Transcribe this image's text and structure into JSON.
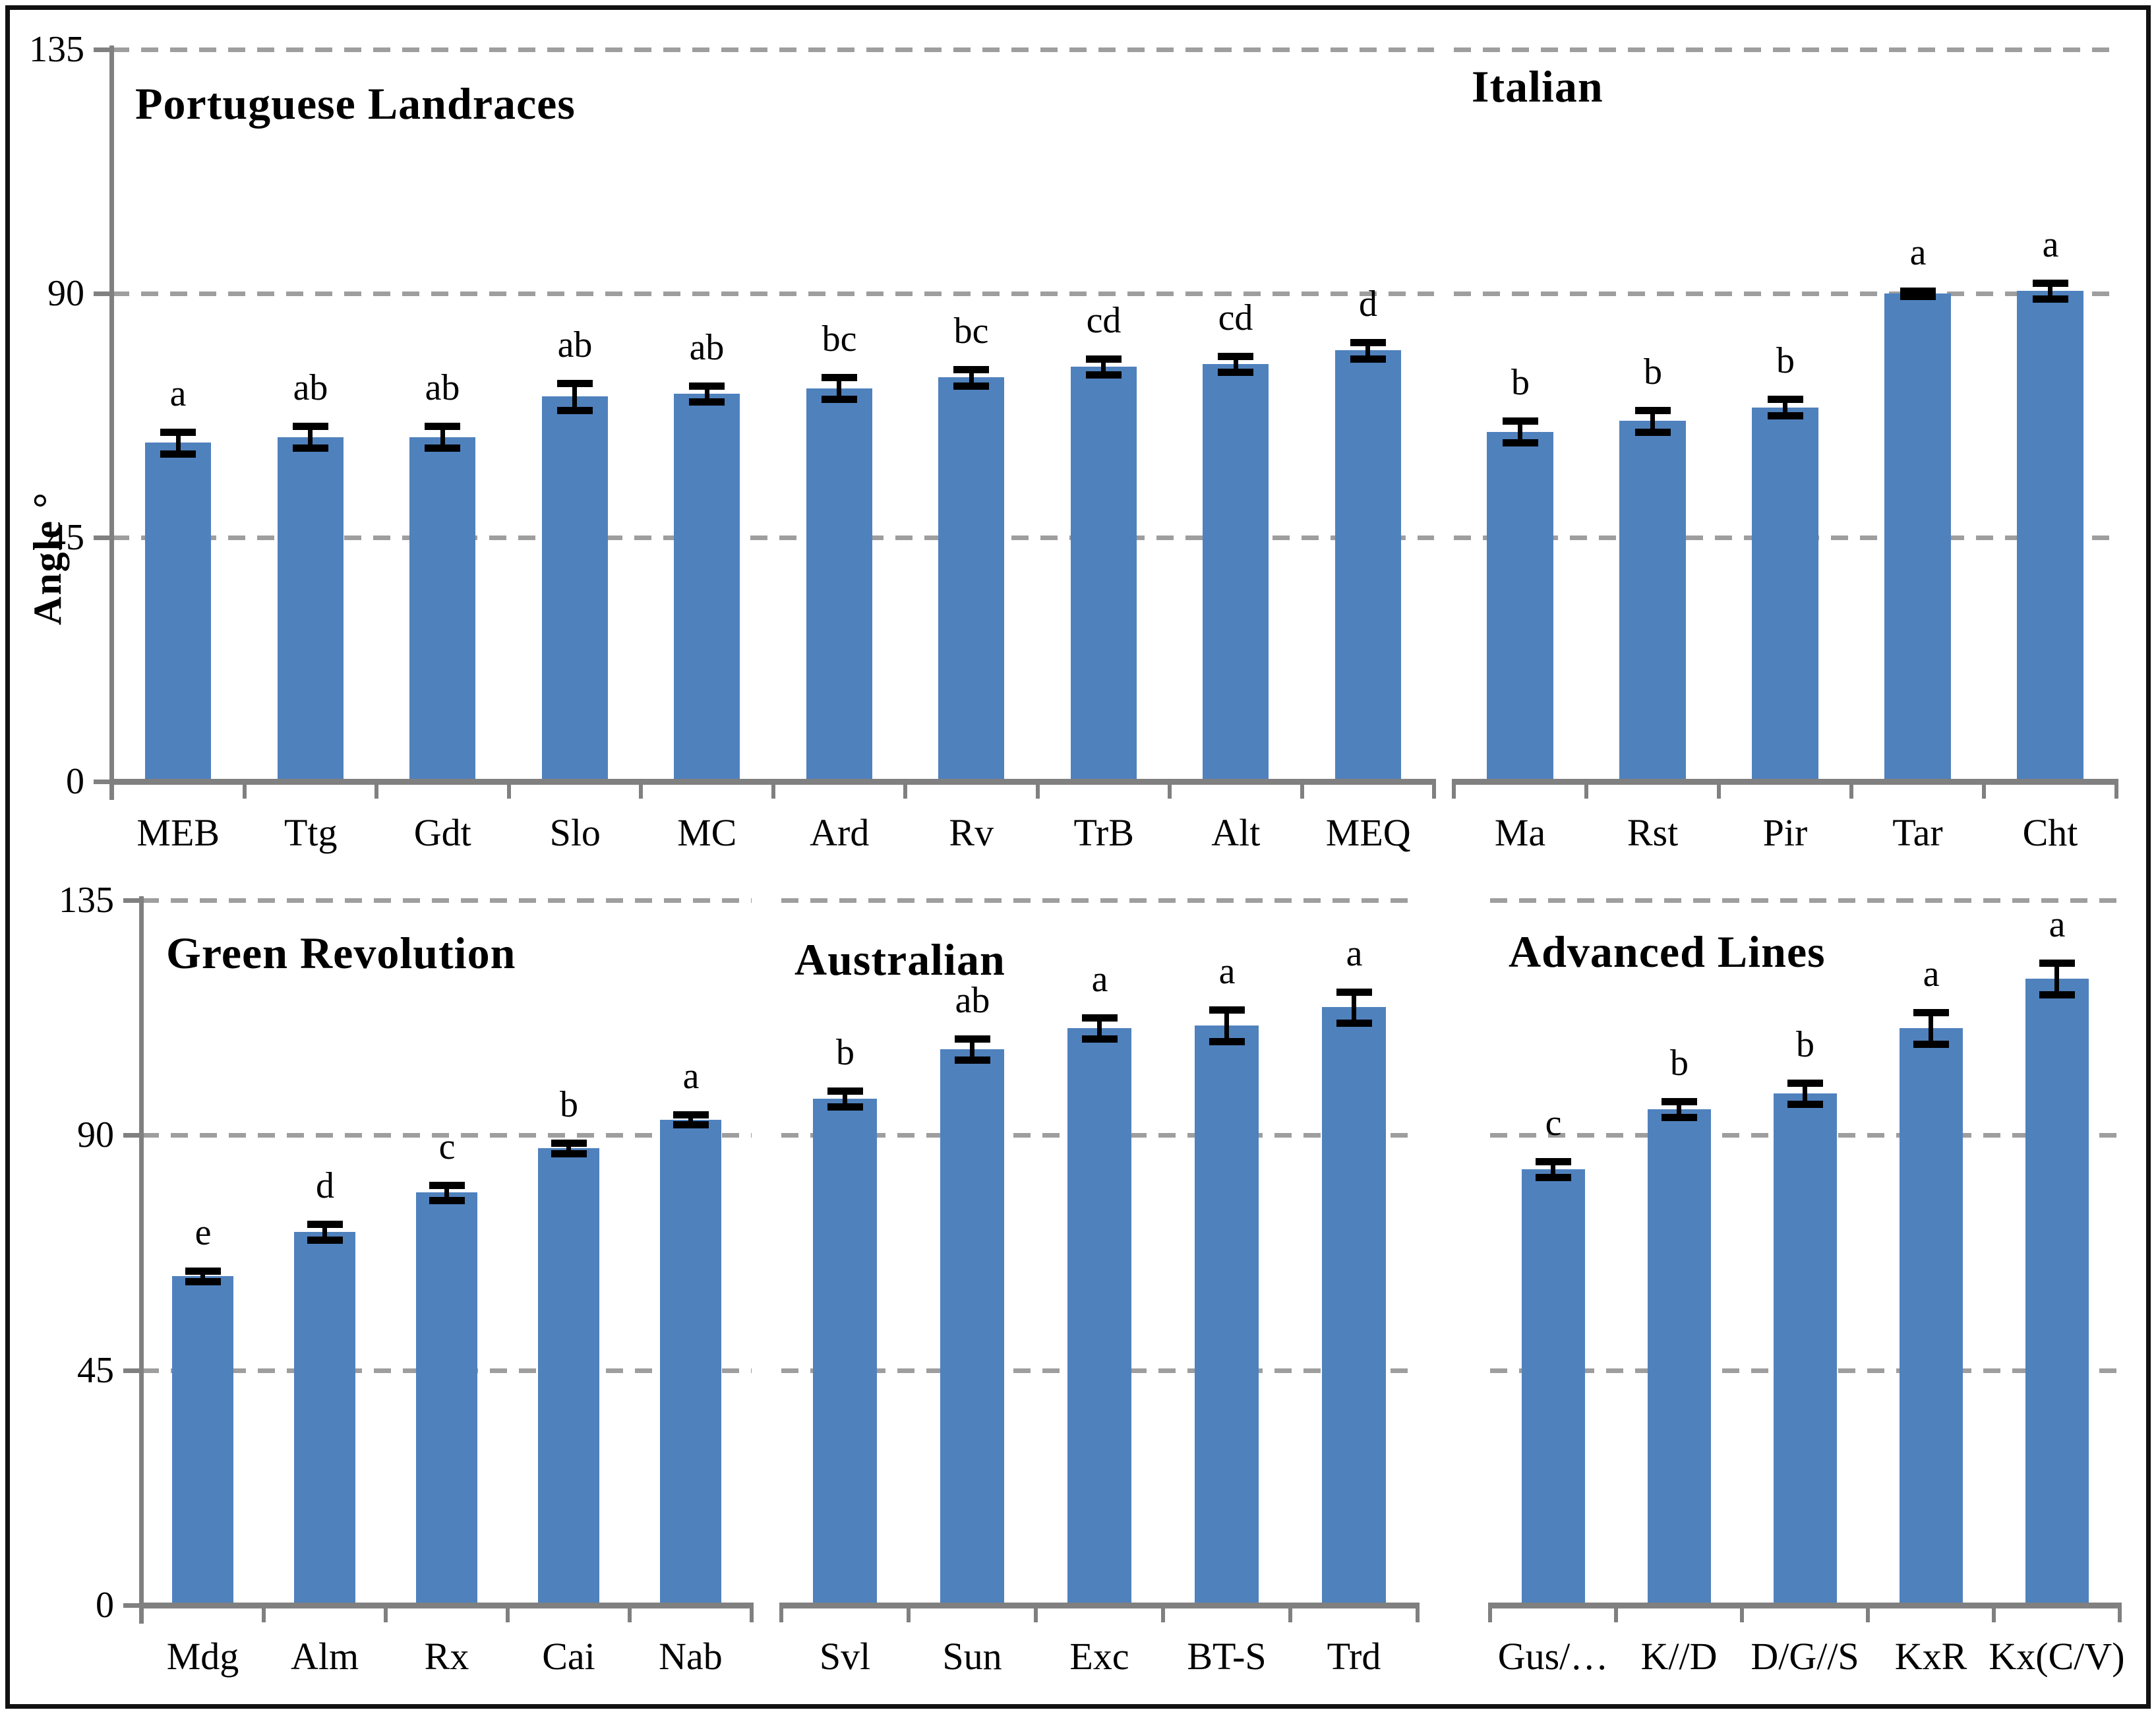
{
  "figure": {
    "ylabel": "Angle °",
    "bar_color": "#4F81BD",
    "grid_color": "#9E9E9E",
    "axis_color": "#808080",
    "error_color": "#000000",
    "background": "#FFFFFF",
    "border_color": "#111111"
  },
  "chart_data": [
    {
      "id": "portuguese",
      "type": "bar",
      "title": "Portuguese Landraces",
      "ylabel": "Angle °",
      "ylim": [
        0,
        135
      ],
      "yticks": [
        0,
        45,
        90,
        135
      ],
      "grid": "dashed-horizontal",
      "legend_position": "none",
      "categories": [
        "MEB",
        "Ttg",
        "Gdt",
        "Slo",
        "MC",
        "Ard",
        "Rv",
        "TrB",
        "Alt",
        "MEQ"
      ],
      "values": [
        62.5,
        63.5,
        63.5,
        71,
        71.5,
        72.5,
        74.5,
        76.5,
        77,
        79.5
      ],
      "errors": [
        2,
        2,
        2,
        2.5,
        1.5,
        2,
        1.5,
        1.5,
        1.5,
        1.5
      ],
      "letters": [
        "a",
        "ab",
        "ab",
        "ab",
        "ab",
        "bc",
        "bc",
        "cd",
        "cd",
        "d"
      ]
    },
    {
      "id": "italian",
      "type": "bar",
      "title": "Italian",
      "ylim": [
        0,
        135
      ],
      "yticks": [
        0,
        45,
        90,
        135
      ],
      "grid": "dashed-horizontal",
      "legend_position": "none",
      "categories": [
        "Ma",
        "Rst",
        "Pir",
        "Tar",
        "Cht"
      ],
      "values": [
        64.5,
        66.5,
        69,
        90,
        90.5
      ],
      "errors": [
        2,
        2,
        1.5,
        0.5,
        1.5
      ],
      "letters": [
        "b",
        "b",
        "b",
        "a",
        "a"
      ]
    },
    {
      "id": "green",
      "type": "bar",
      "title": "Green Revolution",
      "ylim": [
        0,
        135
      ],
      "yticks": [
        0,
        45,
        90,
        135
      ],
      "grid": "dashed-horizontal",
      "legend_position": "none",
      "categories": [
        "Mdg",
        "Alm",
        "Rx",
        "Cai",
        "Nab"
      ],
      "values": [
        63,
        71.5,
        79,
        87.5,
        93
      ],
      "errors": [
        1,
        1.5,
        1.5,
        1,
        1
      ],
      "letters": [
        "e",
        "d",
        "c",
        "b",
        "a"
      ]
    },
    {
      "id": "australian",
      "type": "bar",
      "title": "Australian",
      "ylim": [
        0,
        135
      ],
      "yticks": [
        0,
        45,
        90,
        135
      ],
      "grid": "dashed-horizontal",
      "legend_position": "none",
      "categories": [
        "Svl",
        "Sun",
        "Exc",
        "BT-S",
        "Trd"
      ],
      "values": [
        97,
        106.5,
        110.5,
        111,
        114.5
      ],
      "errors": [
        1.5,
        2,
        2,
        3,
        3
      ],
      "letters": [
        "b",
        "ab",
        "a",
        "a",
        "a"
      ]
    },
    {
      "id": "advanced",
      "type": "bar",
      "title": "Advanced Lines",
      "ylim": [
        0,
        135
      ],
      "yticks": [
        0,
        45,
        90,
        135
      ],
      "grid": "dashed-horizontal",
      "legend_position": "none",
      "categories": [
        "Gus/…",
        "K//D",
        "D/G//S",
        "KxR",
        "Kx(C/V)"
      ],
      "values": [
        83.5,
        95,
        98,
        110.5,
        120
      ],
      "errors": [
        1.5,
        1.5,
        2,
        3,
        3
      ],
      "letters": [
        "c",
        "b",
        "b",
        "a",
        "a"
      ]
    }
  ]
}
